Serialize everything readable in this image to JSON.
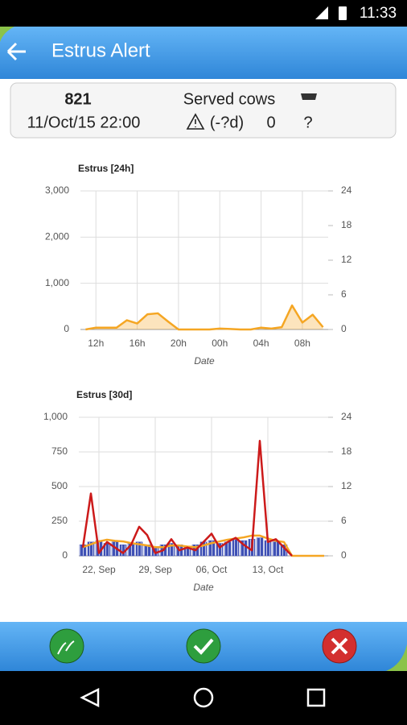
{
  "status_bar": {
    "time": "11:33"
  },
  "app_bar": {
    "title": "Estrus Alert"
  },
  "card": {
    "id": "821",
    "datetime": "11/Oct/15 22:00",
    "served_label": "Served cows",
    "days": "(-?d)",
    "served_count": "0",
    "cow_count": "?"
  },
  "charts": [
    {
      "type": "area",
      "title": "Estrus [24h]",
      "x_label": "Date",
      "categories": [
        null,
        "12h",
        null,
        null,
        null,
        "16h",
        null,
        null,
        null,
        "20h",
        null,
        null,
        null,
        "00h",
        null,
        null,
        null,
        "04h",
        null,
        null,
        null,
        "08h",
        null,
        null
      ],
      "series": [
        {
          "type": "area",
          "color": "#f5a623",
          "values": [
            0,
            40,
            40,
            40,
            200,
            130,
            330,
            350,
            170,
            0,
            0,
            0,
            0,
            20,
            10,
            0,
            0,
            40,
            20,
            50,
            520,
            150,
            320,
            50
          ]
        }
      ],
      "ylim": [
        0,
        3000
      ],
      "yticks": [
        0,
        {
          "value": 1000,
          "label": "1,000"
        },
        {
          "value": 2000,
          "label": "2,000"
        },
        {
          "value": 3000,
          "label": "3,000"
        }
      ],
      "y2lim": [
        0,
        24
      ],
      "y2ticks": [
        0,
        6,
        12,
        18,
        24
      ],
      "grid": true
    },
    {
      "type": "combo",
      "title": "Estrus [30d]",
      "x_label": "Date",
      "categories": [
        null,
        null,
        "22, Sep",
        null,
        null,
        null,
        null,
        null,
        null,
        "29, Sep",
        null,
        null,
        null,
        null,
        null,
        null,
        "06, Oct",
        null,
        null,
        null,
        null,
        null,
        null,
        "13, Oct",
        null,
        null,
        null,
        null,
        null,
        null,
        null
      ],
      "series": [
        {
          "type": "bar",
          "color": "#3f51b5",
          "values": [
            80,
            100,
            110,
            90,
            100,
            80,
            90,
            100,
            80,
            60,
            80,
            90,
            80,
            70,
            80,
            100,
            110,
            90,
            100,
            120,
            110,
            120,
            130,
            110,
            100,
            80,
            0,
            0,
            0,
            0,
            0
          ]
        },
        {
          "type": "line",
          "color": "#f5a623",
          "axis": "y2",
          "values": [
            1.5,
            2,
            2.5,
            2.8,
            2.6,
            2.5,
            2.2,
            2,
            1.8,
            1.5,
            1.5,
            1.8,
            1.8,
            1.6,
            1.5,
            1.8,
            2.2,
            2.5,
            2.8,
            3,
            3.2,
            3.5,
            3.5,
            3,
            2.6,
            2.4,
            0,
            0,
            0,
            0,
            0
          ]
        },
        {
          "type": "line",
          "color": "#cc1a1a",
          "values": [
            60,
            450,
            20,
            100,
            60,
            20,
            80,
            210,
            150,
            20,
            40,
            120,
            40,
            60,
            40,
            100,
            160,
            60,
            100,
            130,
            80,
            40,
            830,
            100,
            120,
            60,
            0,
            null,
            null,
            null,
            null
          ]
        }
      ],
      "ylim": [
        0,
        1000
      ],
      "yticks": [
        0,
        250,
        500,
        750,
        {
          "value": 1000,
          "label": "1,000"
        }
      ],
      "y2lim": [
        0,
        24
      ],
      "y2ticks": [
        0,
        6,
        12,
        18,
        24
      ],
      "grid": true
    }
  ]
}
